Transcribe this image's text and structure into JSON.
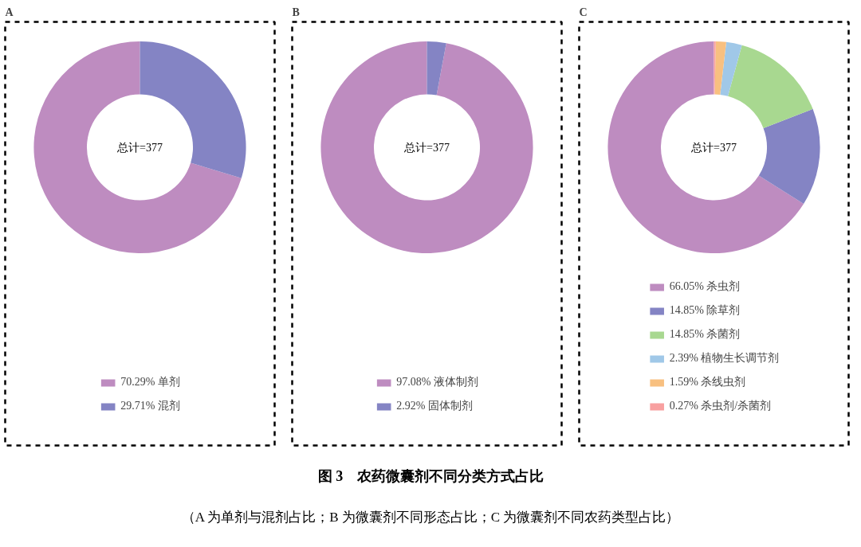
{
  "chart_data": [
    {
      "type": "donut",
      "title": "A",
      "categories": [
        "单剂",
        "混剂"
      ],
      "values": [
        70.29,
        29.71
      ],
      "value_labels": [
        "70.29%",
        "29.71%"
      ],
      "colors": [
        "#be8cc0",
        "#8484c4"
      ],
      "legend": "bottom",
      "annotations": [
        "总计=377"
      ]
    },
    {
      "type": "donut",
      "title": "B",
      "categories": [
        "液体制剂",
        "固体制剂"
      ],
      "values": [
        97.08,
        2.92
      ],
      "value_labels": [
        "97.08%",
        "2.92%"
      ],
      "colors": [
        "#be8cc0",
        "#8484c4"
      ],
      "legend": "bottom",
      "annotations": [
        "总计=377"
      ]
    },
    {
      "type": "donut",
      "title": "C",
      "categories": [
        "杀虫剂",
        "除草剂",
        "杀菌剂",
        "植物生长调节剂",
        "杀线虫剂",
        "杀虫剂/杀菌剂"
      ],
      "values": [
        66.05,
        14.85,
        14.85,
        2.39,
        1.59,
        0.27
      ],
      "value_labels": [
        "66.05%",
        "14.85%",
        "14.85%",
        "2.39%",
        "1.59%",
        "0.27%"
      ],
      "colors": [
        "#be8cc0",
        "#8484c4",
        "#a8d890",
        "#a0c8e8",
        "#f8c080",
        "#f8a0a0"
      ],
      "legend": "bottom",
      "annotations": [
        "总计=377",
        "图 3　农药微囊剂不同分类方式占比",
        "（A 为单剂与混剂占比；B 为微囊剂不同形态占比；C 为微囊剂不同农药类型占比）"
      ]
    }
  ]
}
